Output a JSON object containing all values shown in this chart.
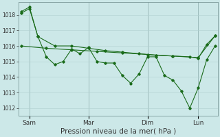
{
  "xlabel": "Pression niveau de la mer( hPa )",
  "bg_color": "#cce8e8",
  "grid_color": "#b0d0d0",
  "line_color": "#1a6b1a",
  "ylim": [
    1011.5,
    1018.8
  ],
  "xlim": [
    -0.3,
    23.3
  ],
  "xtick_labels": [
    "Sam",
    "Mar",
    "Dim",
    "Lun"
  ],
  "xtick_positions": [
    1,
    8,
    15,
    21
  ],
  "ytick_values": [
    1012,
    1013,
    1014,
    1015,
    1016,
    1017,
    1018
  ],
  "ytick_fontsize": 5.5,
  "xtick_fontsize": 6.5,
  "xlabel_fontsize": 7.5,
  "series1_x": [
    0,
    1,
    2,
    3,
    4,
    5,
    6,
    7,
    8,
    9,
    10,
    11,
    12,
    13,
    14,
    15,
    16,
    17,
    18,
    19,
    20,
    21,
    22,
    23
  ],
  "series1_y": [
    1018.2,
    1018.5,
    1016.6,
    1015.3,
    1014.8,
    1015.0,
    1015.8,
    1015.5,
    1015.9,
    1015.0,
    1014.9,
    1014.9,
    1014.1,
    1013.6,
    1014.2,
    1015.3,
    1015.3,
    1014.1,
    1013.8,
    1013.1,
    1012.0,
    1013.3,
    1015.1,
    1016.0
  ],
  "series2_x": [
    0,
    3,
    6,
    9,
    12,
    15,
    18,
    21,
    23
  ],
  "series2_y": [
    1016.0,
    1015.85,
    1015.75,
    1015.65,
    1015.55,
    1015.45,
    1015.35,
    1015.25,
    1016.65
  ],
  "series3_x": [
    0,
    1,
    2,
    4,
    6,
    8,
    10,
    12,
    14,
    16,
    18,
    20,
    21,
    22,
    23
  ],
  "series3_y": [
    1018.1,
    1018.4,
    1016.6,
    1016.0,
    1016.0,
    1015.85,
    1015.7,
    1015.6,
    1015.5,
    1015.4,
    1015.35,
    1015.3,
    1015.2,
    1016.1,
    1016.65
  ]
}
